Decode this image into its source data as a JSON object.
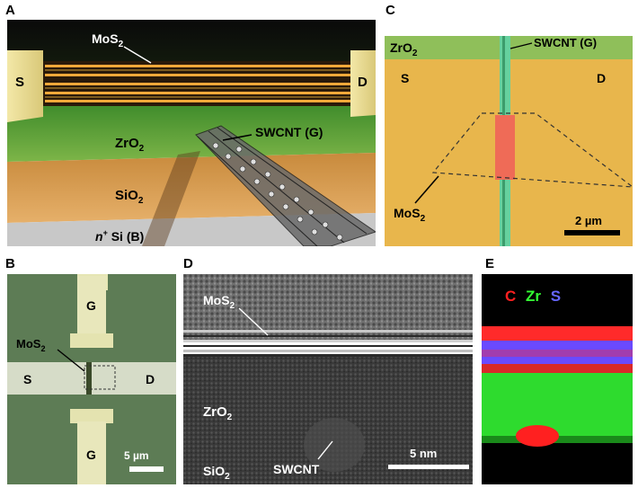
{
  "figure": {
    "panels": {
      "A": {
        "label": "A",
        "source_label": "S",
        "drain_label": "D",
        "mos2_label": "MoS",
        "mos2_sub": "2",
        "zro2_label": "ZrO",
        "zro2_sub": "2",
        "sio2_label": "SiO",
        "sio2_sub": "2",
        "swcnt_label": "SWCNT (G)",
        "si_prefix": "n",
        "si_sup": "+",
        "si_label": " Si (B)"
      },
      "B": {
        "label": "B",
        "gate_top_label": "G",
        "gate_bottom_label": "G",
        "source_label": "S",
        "drain_label": "D",
        "mos2_label": "MoS",
        "mos2_sub": "2",
        "scale_label": "5 µm"
      },
      "C": {
        "label": "C",
        "zro2_label": "ZrO",
        "zro2_sub": "2",
        "swcnt_label": "SWCNT (G)",
        "source_label": "S",
        "drain_label": "D",
        "mos2_label": "MoS",
        "mos2_sub": "2",
        "scale_label": "2 µm"
      },
      "D": {
        "label": "D",
        "mos2_label": "MoS",
        "mos2_sub": "2",
        "zro2_label": "ZrO",
        "zro2_sub": "2",
        "sio2_label": "SiO",
        "sio2_sub": "2",
        "swcnt_label": "SWCNT",
        "scale_label": "5 nm"
      },
      "E": {
        "label": "E",
        "legend": [
          {
            "text": "C",
            "color": "#ff2020"
          },
          {
            "text": "Zr",
            "color": "#33ff33"
          },
          {
            "text": "S",
            "color": "#6666ff"
          }
        ]
      }
    },
    "colors": {
      "gold": "#e8b64c",
      "green": "#8fbf5a",
      "swcnt_green": "#66d19e",
      "channel_red": "#ef6b57"
    }
  }
}
